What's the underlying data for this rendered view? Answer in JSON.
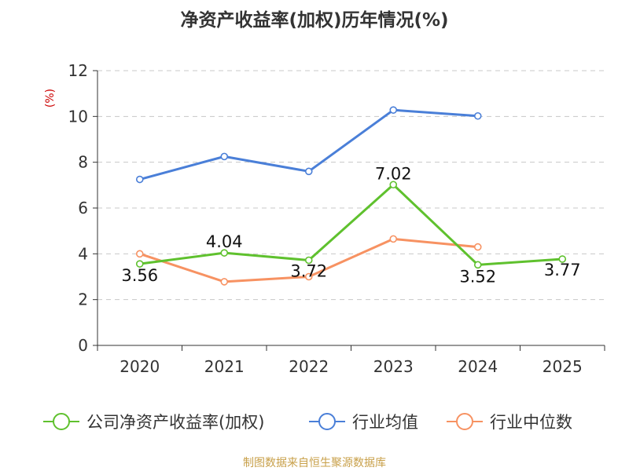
{
  "chart_data": {
    "type": "line",
    "title": "净资产收益率(加权)历年情况(%)",
    "ylabel": "(%)",
    "xlabel": "",
    "categories": [
      "2020",
      "2021",
      "2022",
      "2023",
      "2024",
      "2025"
    ],
    "ylim": [
      0,
      12
    ],
    "yticks": [
      0,
      2,
      4,
      6,
      8,
      10,
      12
    ],
    "grid": true,
    "legend_position": "bottom",
    "series": [
      {
        "name": "公司净资产收益率(加权)",
        "color": "#5fc12e",
        "values": [
          3.56,
          4.04,
          3.72,
          7.02,
          3.52,
          3.77
        ],
        "labels": [
          "3.56",
          "4.04",
          "3.72",
          "7.02",
          "3.52",
          "3.77"
        ]
      },
      {
        "name": "行业均值",
        "color": "#4a7fd8",
        "values": [
          7.25,
          8.25,
          7.6,
          10.28,
          10.02,
          null
        ]
      },
      {
        "name": "行业中位数",
        "color": "#f79262",
        "values": [
          4.0,
          2.78,
          3.0,
          4.65,
          4.3,
          null
        ]
      }
    ]
  },
  "source": "制图数据来自恒生聚源数据库"
}
